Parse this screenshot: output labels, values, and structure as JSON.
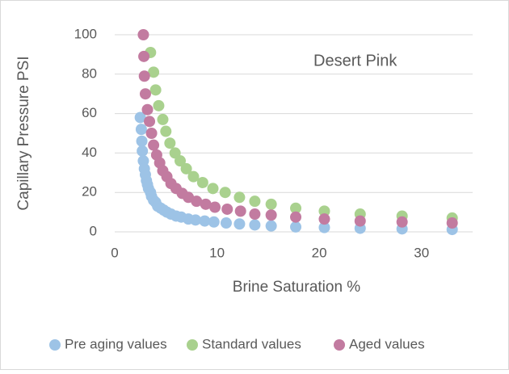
{
  "chart_data": {
    "type": "scatter",
    "title": "Desert Pink",
    "x_label": "Brine Saturation %",
    "y_label": "Capillary Pressure PSI",
    "xlim": [
      0,
      35
    ],
    "xticks": [
      0,
      10,
      20,
      30
    ],
    "ylim": [
      0,
      100
    ],
    "yticks": [
      0,
      20,
      40,
      60,
      80,
      100
    ],
    "grid": true,
    "legend": "bottom",
    "series": [
      {
        "name": "Pre aging values",
        "color": "#9dc3e6",
        "x": [
          2.5,
          2.6,
          2.65,
          2.7,
          2.8,
          2.9,
          3.0,
          3.1,
          3.2,
          3.3,
          3.5,
          3.6,
          3.8,
          4.0,
          4.2,
          4.5,
          4.8,
          5.1,
          5.5,
          6.0,
          6.5,
          7.2,
          7.9,
          8.8,
          9.7,
          10.9,
          12.2,
          13.7,
          15.3,
          17.7,
          20.5,
          24,
          28.1,
          33
        ],
        "values": [
          58,
          52,
          46,
          41,
          36,
          32,
          29,
          26,
          24,
          22,
          20,
          18,
          16,
          15,
          13,
          12,
          11,
          10,
          9,
          8,
          7.5,
          6.5,
          6,
          5.5,
          5,
          4.5,
          4,
          3.5,
          3,
          2.5,
          2.2,
          1.8,
          1.5,
          1.2
        ]
      },
      {
        "name": "Standard values",
        "color": "#a9d18e",
        "x": [
          3.5,
          3.8,
          4.0,
          4.3,
          4.7,
          5.0,
          5.4,
          5.9,
          6.4,
          7.0,
          7.7,
          8.6,
          9.6,
          10.8,
          12.2,
          13.7,
          15.3,
          17.7,
          20.5,
          24,
          28.1,
          33
        ],
        "values": [
          91,
          81,
          72,
          64,
          57,
          51,
          45,
          40,
          36,
          32,
          28,
          25,
          22,
          20,
          17.5,
          15.5,
          14,
          12,
          10.5,
          9,
          8,
          7
        ]
      },
      {
        "name": "Aged values",
        "color": "#c27ba0",
        "x": [
          2.8,
          2.85,
          2.9,
          3.0,
          3.2,
          3.4,
          3.6,
          3.8,
          4.1,
          4.4,
          4.7,
          5.1,
          5.5,
          6.0,
          6.6,
          7.2,
          8.0,
          8.9,
          9.8,
          11.0,
          12.3,
          13.7,
          15.3,
          17.7,
          20.5,
          24,
          28.1,
          33
        ],
        "values": [
          100,
          89,
          79,
          70,
          62,
          56,
          50,
          44,
          39,
          35,
          31,
          28,
          24.5,
          22,
          19.5,
          17.5,
          15.5,
          14,
          12.5,
          11.5,
          10.5,
          9,
          8.5,
          7.5,
          6.5,
          5.5,
          5,
          4.5
        ]
      }
    ]
  }
}
